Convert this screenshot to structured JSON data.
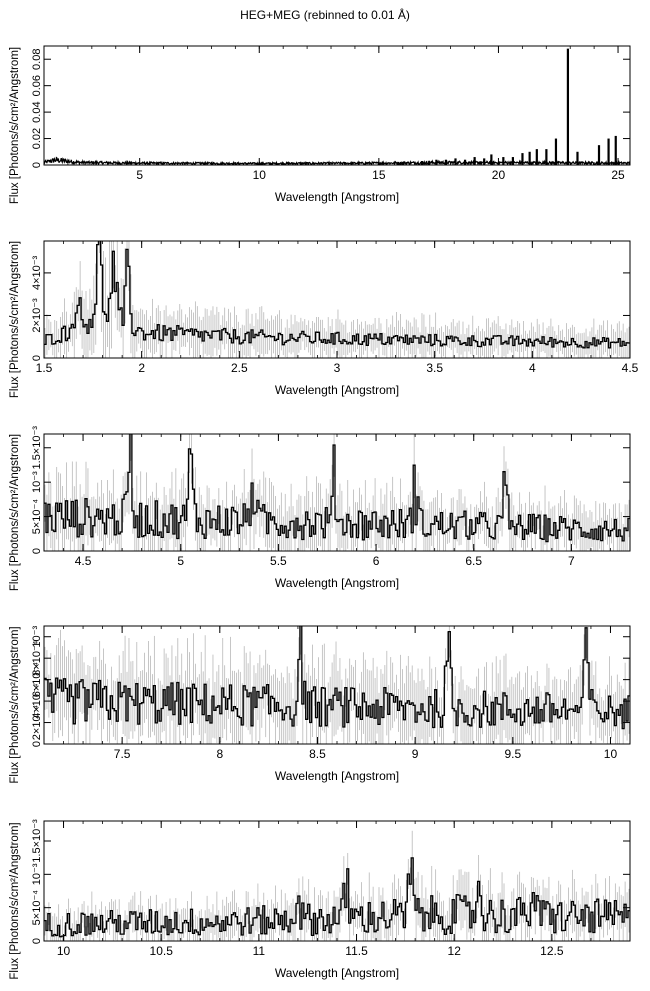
{
  "title": "HEG+MEG (rebinned to 0.01 Å)",
  "chart_data": [
    {
      "type": "line",
      "xlabel": "Wavelength [Angstrom]",
      "ylabel": "Flux [Photons/s/cm²/Angstrom]",
      "xlim": [
        1.0,
        25.5
      ],
      "ylim": [
        0,
        0.09
      ],
      "xticks": [
        5,
        10,
        15,
        20,
        25
      ],
      "yticks": [
        {
          "v": 0,
          "t": "0"
        },
        {
          "v": 0.02,
          "t": "0.02"
        },
        {
          "v": 0.04,
          "t": "0.04"
        },
        {
          "v": 0.06,
          "t": "0.06"
        },
        {
          "v": 0.08,
          "t": "0.08"
        }
      ],
      "continuum": [
        [
          1.0,
          0.002
        ],
        [
          1.5,
          0.004
        ],
        [
          2.5,
          0.002
        ],
        [
          5,
          0.0015
        ],
        [
          10,
          0.0012
        ],
        [
          15,
          0.0015
        ],
        [
          18,
          0.002
        ],
        [
          25.5,
          0.0015
        ]
      ],
      "lines": [
        [
          15.0,
          0.002
        ],
        [
          16.0,
          0.002
        ],
        [
          16.8,
          0.003
        ],
        [
          17.1,
          0.003
        ],
        [
          17.4,
          0.004
        ],
        [
          17.8,
          0.004
        ],
        [
          18.2,
          0.005
        ],
        [
          18.6,
          0.004
        ],
        [
          19.0,
          0.006
        ],
        [
          19.4,
          0.005
        ],
        [
          19.7,
          0.008
        ],
        [
          20.2,
          0.006
        ],
        [
          20.6,
          0.006
        ],
        [
          21.0,
          0.009
        ],
        [
          21.3,
          0.01
        ],
        [
          21.6,
          0.012
        ],
        [
          22.0,
          0.012
        ],
        [
          22.4,
          0.02
        ],
        [
          22.9,
          0.088
        ],
        [
          23.3,
          0.01
        ],
        [
          24.2,
          0.015
        ],
        [
          24.6,
          0.02
        ],
        [
          24.9,
          0.022
        ]
      ]
    },
    {
      "type": "line",
      "xlabel": "Wavelength [Angstrom]",
      "ylabel": "Flux [Photons/s/cm²/Angstrom]",
      "xlim": [
        1.5,
        4.5
      ],
      "ylim": [
        0,
        0.0055
      ],
      "xticks": [
        1.5,
        2,
        2.5,
        3,
        3.5,
        4,
        4.5
      ],
      "yticks": [
        {
          "v": 0,
          "t": "0"
        },
        {
          "v": 0.002,
          "t": "2×10⁻³"
        },
        {
          "v": 0.004,
          "t": "4×10⁻³"
        }
      ],
      "profile": [
        [
          1.5,
          0.0008
        ],
        [
          1.7,
          0.0015
        ],
        [
          1.8,
          0.0025
        ],
        [
          1.9,
          0.0017
        ],
        [
          2.0,
          0.0012
        ],
        [
          2.5,
          0.001
        ],
        [
          3.0,
          0.0009
        ],
        [
          4.5,
          0.0007
        ]
      ],
      "peaks": [
        [
          1.78,
          0.0042
        ],
        [
          1.93,
          0.0036
        ],
        [
          1.86,
          0.0032
        ],
        [
          1.67,
          0.0028
        ]
      ],
      "noise": 0.35
    },
    {
      "type": "line",
      "xlabel": "Wavelength [Angstrom]",
      "ylabel": "Flux [Photons/s/cm²/Angstrom]",
      "xlim": [
        4.3,
        7.3
      ],
      "ylim": [
        0,
        0.0017
      ],
      "xticks": [
        4.5,
        5,
        5.5,
        6,
        6.5,
        7
      ],
      "yticks": [
        {
          "v": 0,
          "t": "0"
        },
        {
          "v": 0.0005,
          "t": "5×10⁻⁴"
        },
        {
          "v": 0.001,
          "t": "10⁻³"
        },
        {
          "v": 0.0015,
          "t": "1.5×10⁻³"
        }
      ],
      "profile": [
        [
          4.3,
          0.0005
        ],
        [
          5.0,
          0.00045
        ],
        [
          6.0,
          0.0004
        ],
        [
          7.3,
          0.0003
        ]
      ],
      "peaks": [
        [
          4.74,
          0.0012
        ],
        [
          5.05,
          0.00105
        ],
        [
          5.37,
          0.001
        ],
        [
          5.79,
          0.0009
        ],
        [
          6.2,
          0.00085
        ],
        [
          6.66,
          0.0007
        ]
      ],
      "noise": 0.6
    },
    {
      "type": "line",
      "xlabel": "Wavelength [Angstrom]",
      "ylabel": "Flux [Photons/s/cm²/Angstrom]",
      "xlim": [
        7.1,
        10.1
      ],
      "ylim": [
        0,
        0.0011
      ],
      "xticks": [
        7.5,
        8,
        8.5,
        9,
        9.5,
        10
      ],
      "yticks": [
        {
          "v": 0,
          "t": "0"
        },
        {
          "v": 0.0002,
          "t": "2×10⁻⁴"
        },
        {
          "v": 0.0004,
          "t": "4×10⁻⁴"
        },
        {
          "v": 0.0006,
          "t": "6×10⁻⁴"
        },
        {
          "v": 0.0008,
          "t": "8×10⁻⁴"
        },
        {
          "v": 0.001,
          "t": "10⁻³"
        }
      ],
      "profile": [
        [
          7.1,
          0.0004
        ],
        [
          8.5,
          0.00035
        ],
        [
          10.1,
          0.0003
        ]
      ],
      "peaks": [
        [
          8.42,
          0.00065
        ],
        [
          9.17,
          0.0006
        ],
        [
          9.88,
          0.0008
        ]
      ],
      "noise": 0.55
    },
    {
      "type": "line",
      "xlabel": "Wavelength [Angstrom]",
      "ylabel": "Flux [Photons/s/cm²/Angstrom]",
      "xlim": [
        9.9,
        12.9
      ],
      "ylim": [
        0,
        0.0018
      ],
      "xticks": [
        10,
        10.5,
        11,
        11.5,
        12,
        12.5
      ],
      "yticks": [
        {
          "v": 0,
          "t": "0"
        },
        {
          "v": 0.0005,
          "t": "5×10⁻⁴"
        },
        {
          "v": 0.001,
          "t": "10⁻³"
        },
        {
          "v": 0.0015,
          "t": "1.5×10⁻³"
        }
      ],
      "profile": [
        [
          9.9,
          0.00025
        ],
        [
          11.0,
          0.0003
        ],
        [
          12.0,
          0.0004
        ],
        [
          12.9,
          0.00035
        ]
      ],
      "peaks": [
        [
          11.2,
          0.0007
        ],
        [
          11.45,
          0.0007
        ],
        [
          11.78,
          0.0009
        ],
        [
          12.13,
          0.0007
        ],
        [
          12.4,
          0.0006
        ]
      ],
      "noise": 0.75
    }
  ]
}
